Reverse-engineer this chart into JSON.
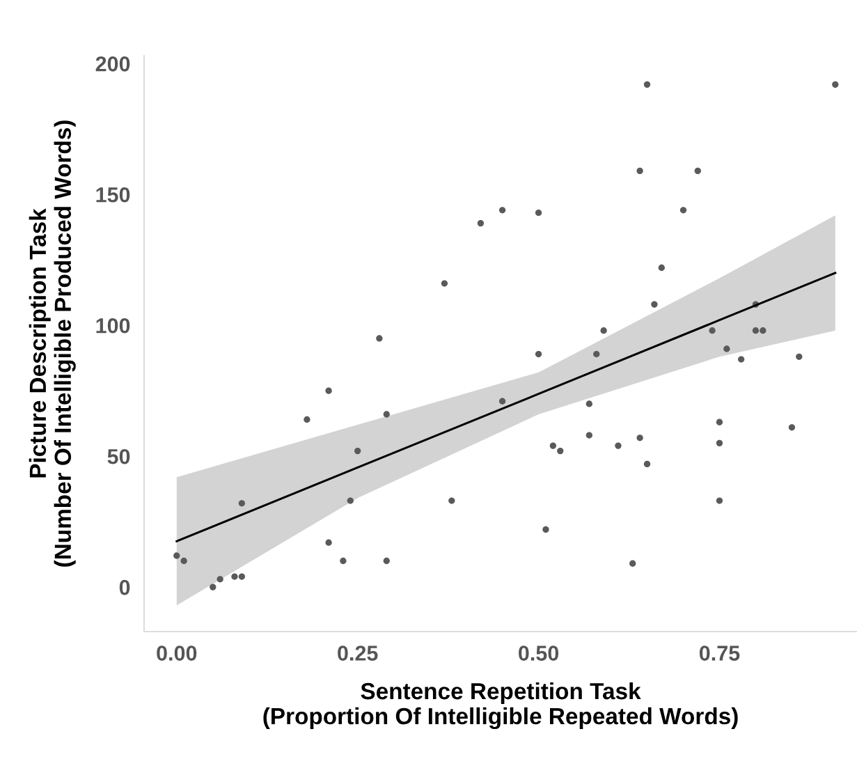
{
  "chart_data": {
    "type": "scatter",
    "xlabel": "Sentence Repetition Task\n(Proportion Of Intelligible Repeated Words)",
    "ylabel": "Picture Description Task\n(Number Of Intelligible Produced Words)",
    "xlim": [
      -0.045,
      0.94
    ],
    "ylim": [
      -17,
      203
    ],
    "xticks": [
      {
        "value": 0,
        "label": "0.00"
      },
      {
        "value": 0.25,
        "label": "0.25"
      },
      {
        "value": 0.5,
        "label": "0.50"
      },
      {
        "value": 0.75,
        "label": "0.75"
      }
    ],
    "yticks": [
      0,
      50,
      100,
      150,
      200
    ],
    "grid": false,
    "series": [
      {
        "color": "#5a5a5a",
        "marker": "circle",
        "x": [
          0.0,
          0.01,
          0.05,
          0.06,
          0.08,
          0.09,
          0.09,
          0.18,
          0.21,
          0.21,
          0.23,
          0.24,
          0.25,
          0.28,
          0.29,
          0.29,
          0.37,
          0.38,
          0.42,
          0.45,
          0.45,
          0.5,
          0.5,
          0.51,
          0.52,
          0.53,
          0.57,
          0.57,
          0.58,
          0.59,
          0.61,
          0.63,
          0.64,
          0.64,
          0.65,
          0.65,
          0.66,
          0.67,
          0.7,
          0.72,
          0.74,
          0.75,
          0.75,
          0.75,
          0.76,
          0.78,
          0.8,
          0.8,
          0.81,
          0.85,
          0.86,
          0.91
        ],
        "values": [
          12,
          10,
          0,
          3,
          4,
          4,
          32,
          64,
          75,
          17,
          10,
          33,
          52,
          95,
          66,
          10,
          116,
          33,
          139,
          144,
          71,
          143,
          89,
          22,
          54,
          52,
          70,
          58,
          89,
          98,
          54,
          9,
          57,
          159,
          192,
          47,
          108,
          122,
          144,
          159,
          98,
          63,
          55,
          33,
          91,
          87,
          108,
          98,
          98,
          61,
          88,
          192
        ]
      },
      {
        "type": "line",
        "color": "#000000",
        "line_style": "solid",
        "x": [
          0.0,
          0.25,
          0.5,
          0.75,
          0.91
        ],
        "values": [
          17.5,
          45.7,
          73.8,
          102.0,
          120.0
        ],
        "lower": [
          -7,
          34,
          66,
          88,
          98
        ],
        "upper": [
          42,
          62,
          82,
          118,
          142
        ]
      }
    ]
  }
}
